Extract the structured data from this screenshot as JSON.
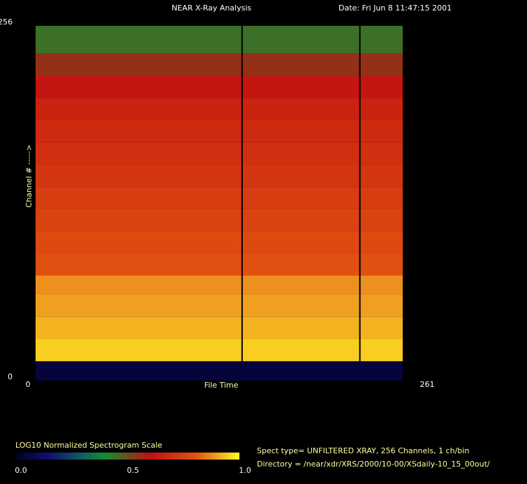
{
  "chart_data": {
    "type": "spectrogram",
    "title": "NEAR X-Ray Analysis",
    "date": "Date: Fri Jun  8 11:47:15 2001",
    "xlabel": "File Time",
    "ylabel": "Channel # ----->",
    "xlim": [
      0,
      261
    ],
    "xticks": [
      0,
      261
    ],
    "ylim": [
      0,
      256
    ],
    "yticks": [
      0,
      256
    ],
    "time_range": [
      5,
      245
    ],
    "gaps": [
      140,
      217
    ],
    "channel_bins": [
      0,
      14,
      30,
      46,
      62,
      76,
      92,
      108,
      124,
      140,
      156,
      172,
      188,
      204,
      220,
      236,
      256
    ],
    "values": [
      0.05,
      0.95,
      0.92,
      0.9,
      0.88,
      0.8,
      0.78,
      0.76,
      0.74,
      0.72,
      0.7,
      0.68,
      0.66,
      0.62,
      0.55,
      0.45
    ],
    "colormap": [
      [
        0,
        "#000020"
      ],
      [
        0.15,
        "#101070"
      ],
      [
        0.3,
        "#106060"
      ],
      [
        0.4,
        "#109030"
      ],
      [
        0.6,
        "#c01010"
      ],
      [
        0.8,
        "#e05010"
      ],
      [
        0.9,
        "#f0a020"
      ],
      [
        1,
        "#ffff20"
      ]
    ],
    "colorbar": {
      "title": "LOG10 Normalized Spectrogram Scale",
      "lim": [
        0,
        1
      ],
      "ticks": [
        {
          "value": 0,
          "label": "0.0"
        },
        0.5,
        {
          "value": 1,
          "label": "1.0"
        }
      ]
    },
    "info": [
      "Spect type= UNFILTERED XRAY,  256 Channels,  1 ch/bin",
      "Directory = /near/xdr/XRS/2000/10-00/XSdaily-10_15_00out/"
    ]
  }
}
